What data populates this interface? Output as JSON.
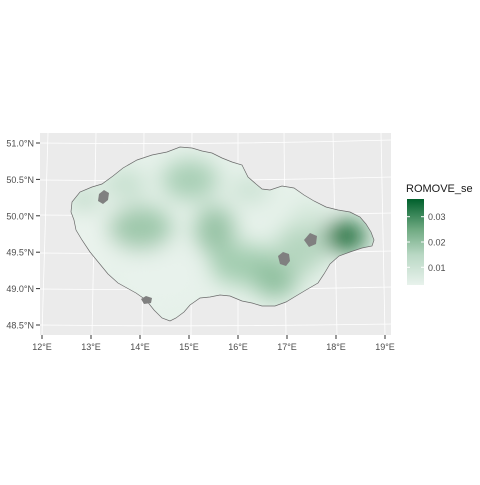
{
  "map": {
    "y_ticks": [
      "51.0°N",
      "50.5°N",
      "50.0°N",
      "49.5°N",
      "49.0°N",
      "48.5°N"
    ],
    "x_ticks": [
      "12°E",
      "13°E",
      "14°E",
      "15°E",
      "16°E",
      "17°E",
      "18°E",
      "19°E"
    ],
    "lat_values": [
      51.0,
      50.5,
      50.0,
      49.5,
      49.0,
      48.5
    ],
    "lon_values": [
      12,
      13,
      14,
      15,
      16,
      17,
      18,
      19
    ],
    "panel_background": "#ebebeb",
    "grid_color": "#ffffff",
    "missing_color": "#808080"
  },
  "legend": {
    "title": "ROMOVE_se",
    "labels": [
      "0.03",
      "0.02",
      "0.01"
    ],
    "values": [
      0.03,
      0.02,
      0.01
    ],
    "range": [
      0.003,
      0.037
    ],
    "color_low": "#e8f2ec",
    "color_high": "#00602c"
  }
}
